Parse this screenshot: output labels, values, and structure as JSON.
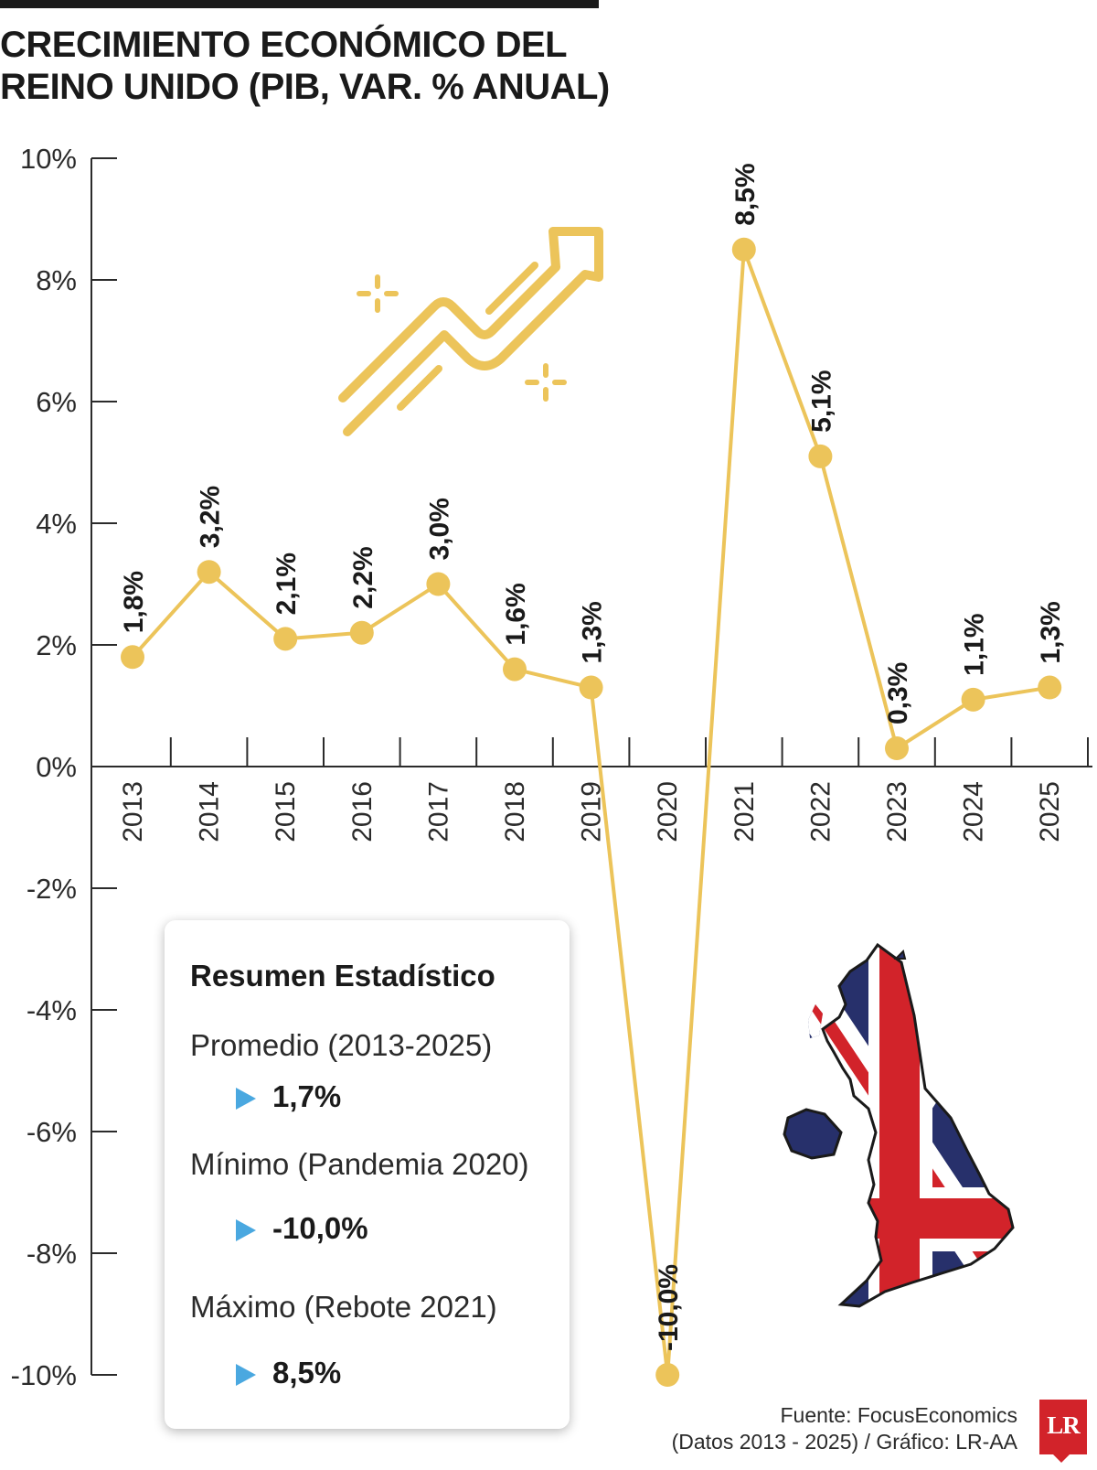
{
  "header": {
    "title_line1": "CRECIMIENTO ECONÓMICO DEL",
    "title_line2": "REINO UNIDO (PIB, VAR. % ANUAL)"
  },
  "chart_data": {
    "type": "line",
    "title": "CRECIMIENTO ECONÓMICO DEL REINO UNIDO (PIB, VAR. % ANUAL)",
    "categories": [
      "2013",
      "2014",
      "2015",
      "2016",
      "2017",
      "2018",
      "2019",
      "2020",
      "2021",
      "2022",
      "2023",
      "2024",
      "2025"
    ],
    "values": [
      1.8,
      3.2,
      2.1,
      2.2,
      3.0,
      1.6,
      1.3,
      -10.0,
      8.5,
      5.1,
      0.3,
      1.1,
      1.3
    ],
    "data_labels": [
      "1,8%",
      "3,2%",
      "2,1%",
      "2,2%",
      "3,0%",
      "1,6%",
      "1,3%",
      "-10,0%",
      "8,5%",
      "5,1%",
      "0,3%",
      "1,1%",
      "1,3%"
    ],
    "ylim": [
      -10,
      10
    ],
    "y_ticks": [
      10,
      8,
      6,
      4,
      2,
      0,
      -2,
      -4,
      -6,
      -8,
      -10
    ],
    "y_tick_labels": [
      "10%",
      "8%",
      "6%",
      "4%",
      "2%",
      "0%",
      "-2%",
      "-4%",
      "-6%",
      "-8%",
      "-10%"
    ],
    "xlabel": "",
    "ylabel": "",
    "grid": false,
    "line_color": "#ecc45a"
  },
  "summary": {
    "title": "Resumen Estadístico",
    "avg_label": "Promedio (2013-2025)",
    "avg_value": "1,7%",
    "min_label": "Mínimo (Pandemia 2020)",
    "min_value": "-10,0%",
    "max_label": "Máximo (Rebote 2021)",
    "max_value": "8,5%"
  },
  "footer": {
    "source_line1": "Fuente: FocusEconomics",
    "source_line2": "(Datos 2013 - 2025) / Gráfico: LR-AA",
    "logo_text": "LR"
  },
  "colors": {
    "accent": "#ecc45a",
    "arrow": "#4aa8e0",
    "flag_blue": "#27306b",
    "flag_red": "#d2232a",
    "logo_red": "#d2232a"
  },
  "icons": [
    "growth-arrow-icon",
    "sparkle-icon",
    "uk-flag-map-icon"
  ]
}
